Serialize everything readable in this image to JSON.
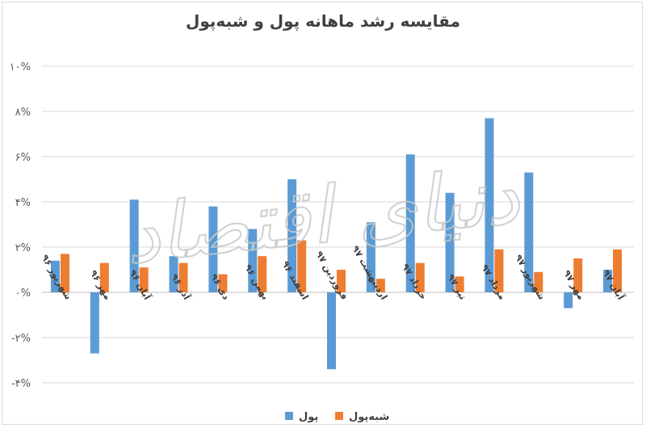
{
  "chart_data": {
    "type": "bar",
    "title": "مقایسه رشد ماهانه پول و شبه‌پول",
    "categories": [
      "شهریور ۹۶",
      "مهر ۹۶",
      "آبان ۹۶",
      "آذر ۹۶",
      "دی ۹۶",
      "بهمن ۹۶",
      "اسفند ۹۶",
      "فروردین ۹۷",
      "اردیبهشت ۹۷",
      "خرداد ۹۷",
      "تیر ۹۷",
      "مرداد ۹۷",
      "شهریور ۹۷",
      "مهر ۹۷",
      "آبان ۹۷"
    ],
    "series": [
      {
        "name": "پول",
        "color": "#5b9bd5",
        "values": [
          1.4,
          -2.7,
          4.1,
          1.6,
          3.8,
          2.8,
          5.0,
          -3.4,
          3.1,
          6.1,
          4.4,
          7.7,
          5.3,
          -0.7,
          1.0
        ]
      },
      {
        "name": "شبه‌پول",
        "color": "#ed7d31",
        "values": [
          1.7,
          1.3,
          1.1,
          1.3,
          0.8,
          1.6,
          2.3,
          1.0,
          0.6,
          1.3,
          0.7,
          1.9,
          0.9,
          1.5,
          1.9
        ]
      }
    ],
    "yticks": [
      "۱۰%",
      "۸%",
      "۶%",
      "۴%",
      "۲%",
      "۰%",
      "-۲%",
      "-۴%"
    ],
    "ytick_values": [
      10,
      8,
      6,
      4,
      2,
      0,
      -2,
      -4
    ],
    "ylim": [
      -4,
      10
    ],
    "grid": true,
    "legend_position": "bottom"
  },
  "watermark": "دنیای اقتصاد"
}
